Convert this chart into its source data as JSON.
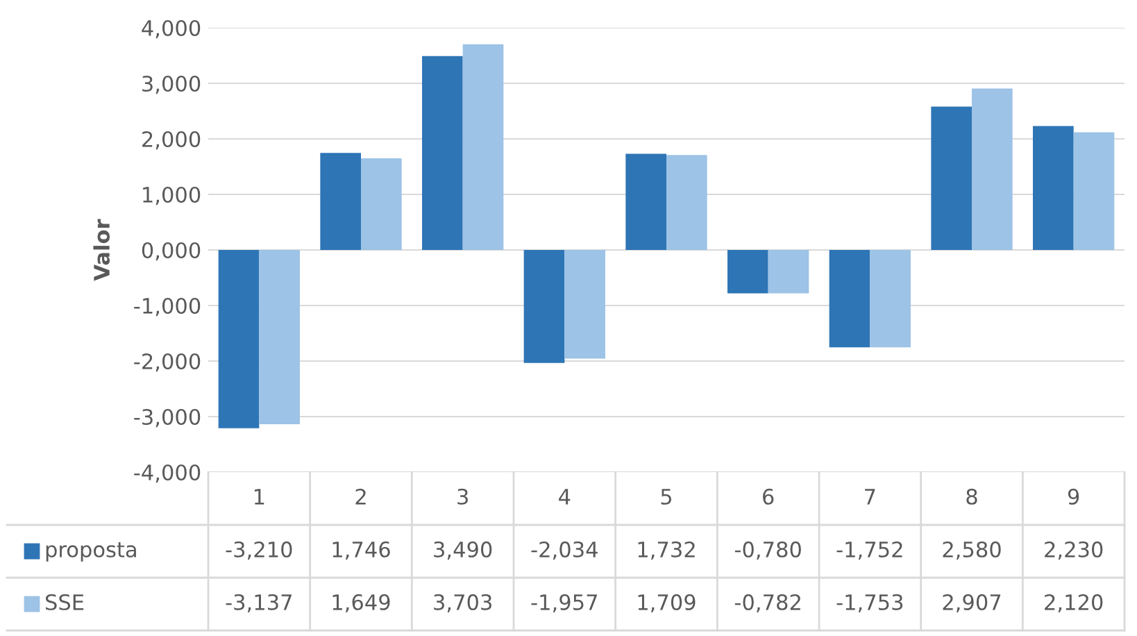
{
  "chart_data": {
    "type": "bar",
    "ylabel": "Valor",
    "categories": [
      "1",
      "2",
      "3",
      "4",
      "5",
      "6",
      "7",
      "8",
      "9"
    ],
    "series": [
      {
        "name": "proposta",
        "color": "#2e75b6",
        "values": [
          -3.21,
          1.746,
          3.49,
          -2.034,
          1.732,
          -0.78,
          -1.752,
          2.58,
          2.23
        ],
        "value_labels": [
          "-3,210",
          "1,746",
          "3,490",
          "-2,034",
          "1,732",
          "-0,780",
          "-1,752",
          "2,580",
          "2,230"
        ]
      },
      {
        "name": "SSE",
        "color": "#9dc3e6",
        "values": [
          -3.137,
          1.649,
          3.703,
          -1.957,
          1.709,
          -0.782,
          -1.753,
          2.907,
          2.12
        ],
        "value_labels": [
          "-3,137",
          "1,649",
          "3,703",
          "-1,957",
          "1,709",
          "-0,782",
          "-1,753",
          "2,907",
          "2,120"
        ]
      }
    ],
    "ylim": [
      -4,
      4
    ],
    "yticks": [
      {
        "value": -4,
        "label": "-4,000"
      },
      {
        "value": -3,
        "label": "-3,000"
      },
      {
        "value": -2,
        "label": "-2,000"
      },
      {
        "value": -1,
        "label": "-1,000"
      },
      {
        "value": 0,
        "label": "0,000"
      },
      {
        "value": 1,
        "label": "1,000"
      },
      {
        "value": 2,
        "label": "2,000"
      },
      {
        "value": 3,
        "label": "3,000"
      },
      {
        "value": 4,
        "label": "4,000"
      }
    ],
    "grid": "y",
    "legend": "bottom"
  }
}
